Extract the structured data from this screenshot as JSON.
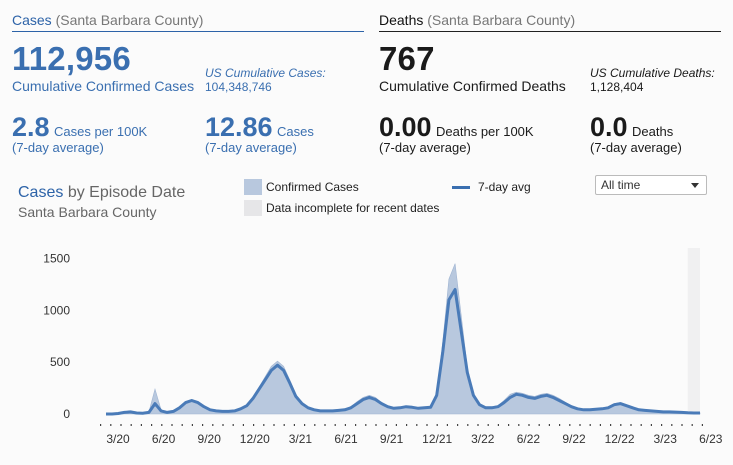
{
  "cases_panel": {
    "header_main": "Cases",
    "header_sub": "(Santa Barbara County)",
    "total": "112,956",
    "total_label": "Cumulative Confirmed Cases",
    "us_label": "US Cumulative Cases:",
    "us_value": "104,348,746",
    "rate_value": "2.8",
    "rate_unit": "Cases per 100K",
    "rate_note": "(7-day average)",
    "avg_value": "12.86",
    "avg_unit": "Cases",
    "avg_note": "(7-day average)"
  },
  "deaths_panel": {
    "header_main": "Deaths",
    "header_sub": "(Santa Barbara County)",
    "total": "767",
    "total_label": "Cumulative Confirmed Deaths",
    "us_label": "US Cumulative Deaths:",
    "us_value": "1,128,404",
    "rate_value": "0.00",
    "rate_unit": "Deaths per 100K",
    "rate_note": "(7-day average)",
    "avg_value": "0.0",
    "avg_unit": "Deaths",
    "avg_note": "(7-day average)"
  },
  "chart_section": {
    "title_main": "Cases",
    "title_rest": "by Episode Date",
    "subtitle": "Santa Barbara County",
    "legend_confirmed": "Confirmed Cases",
    "legend_incomplete": "Data incomplete for recent dates",
    "legend_avg": "7-day avg",
    "range_select": "All time"
  },
  "colors": {
    "accent_blue": "#3a6fb0",
    "area_fill": "#b8c8de",
    "line": "#4a7bb8",
    "incomplete": "#e6e6e8"
  },
  "chart_data": {
    "type": "area",
    "title": "Cases by Episode Date",
    "subtitle": "Santa Barbara County",
    "x_ticks": [
      "3/20",
      "6/20",
      "9/20",
      "12/20",
      "3/21",
      "6/21",
      "9/21",
      "12/21",
      "3/22",
      "6/22",
      "9/22",
      "12/22",
      "3/23",
      "6/23"
    ],
    "y_ticks": [
      0,
      500,
      1000,
      1500
    ],
    "ylim": [
      0,
      1600
    ],
    "series": [
      {
        "name": "7-day avg",
        "values": [
          0,
          0,
          5,
          15,
          20,
          10,
          8,
          15,
          100,
          30,
          15,
          25,
          60,
          110,
          130,
          110,
          70,
          40,
          30,
          25,
          25,
          30,
          50,
          80,
          150,
          240,
          330,
          420,
          470,
          420,
          300,
          170,
          100,
          60,
          40,
          30,
          30,
          30,
          35,
          40,
          60,
          100,
          140,
          160,
          140,
          100,
          70,
          55,
          60,
          70,
          65,
          55,
          60,
          65,
          180,
          600,
          1100,
          1200,
          800,
          400,
          180,
          90,
          60,
          60,
          70,
          110,
          160,
          190,
          180,
          160,
          150,
          170,
          180,
          160,
          130,
          100,
          70,
          50,
          40,
          40,
          45,
          50,
          60,
          90,
          100,
          80,
          60,
          40,
          35,
          30,
          25,
          20,
          20,
          18,
          15,
          12,
          10,
          10
        ]
      },
      {
        "name": "Confirmed Cases",
        "values": [
          0,
          0,
          8,
          20,
          25,
          15,
          10,
          20,
          240,
          40,
          20,
          30,
          70,
          120,
          140,
          120,
          80,
          45,
          35,
          30,
          28,
          35,
          55,
          90,
          160,
          260,
          360,
          460,
          510,
          460,
          330,
          190,
          110,
          65,
          45,
          35,
          35,
          35,
          40,
          45,
          70,
          120,
          160,
          180,
          160,
          110,
          75,
          60,
          65,
          75,
          70,
          60,
          65,
          70,
          200,
          700,
          1300,
          1450,
          950,
          450,
          200,
          100,
          70,
          70,
          80,
          130,
          190,
          210,
          200,
          180,
          170,
          190,
          200,
          180,
          150,
          115,
          80,
          55,
          45,
          45,
          50,
          55,
          70,
          100,
          110,
          90,
          70,
          45,
          40,
          35,
          28,
          22,
          22,
          20,
          17,
          14,
          12,
          11
        ]
      }
    ],
    "incomplete_from_index": 95
  }
}
